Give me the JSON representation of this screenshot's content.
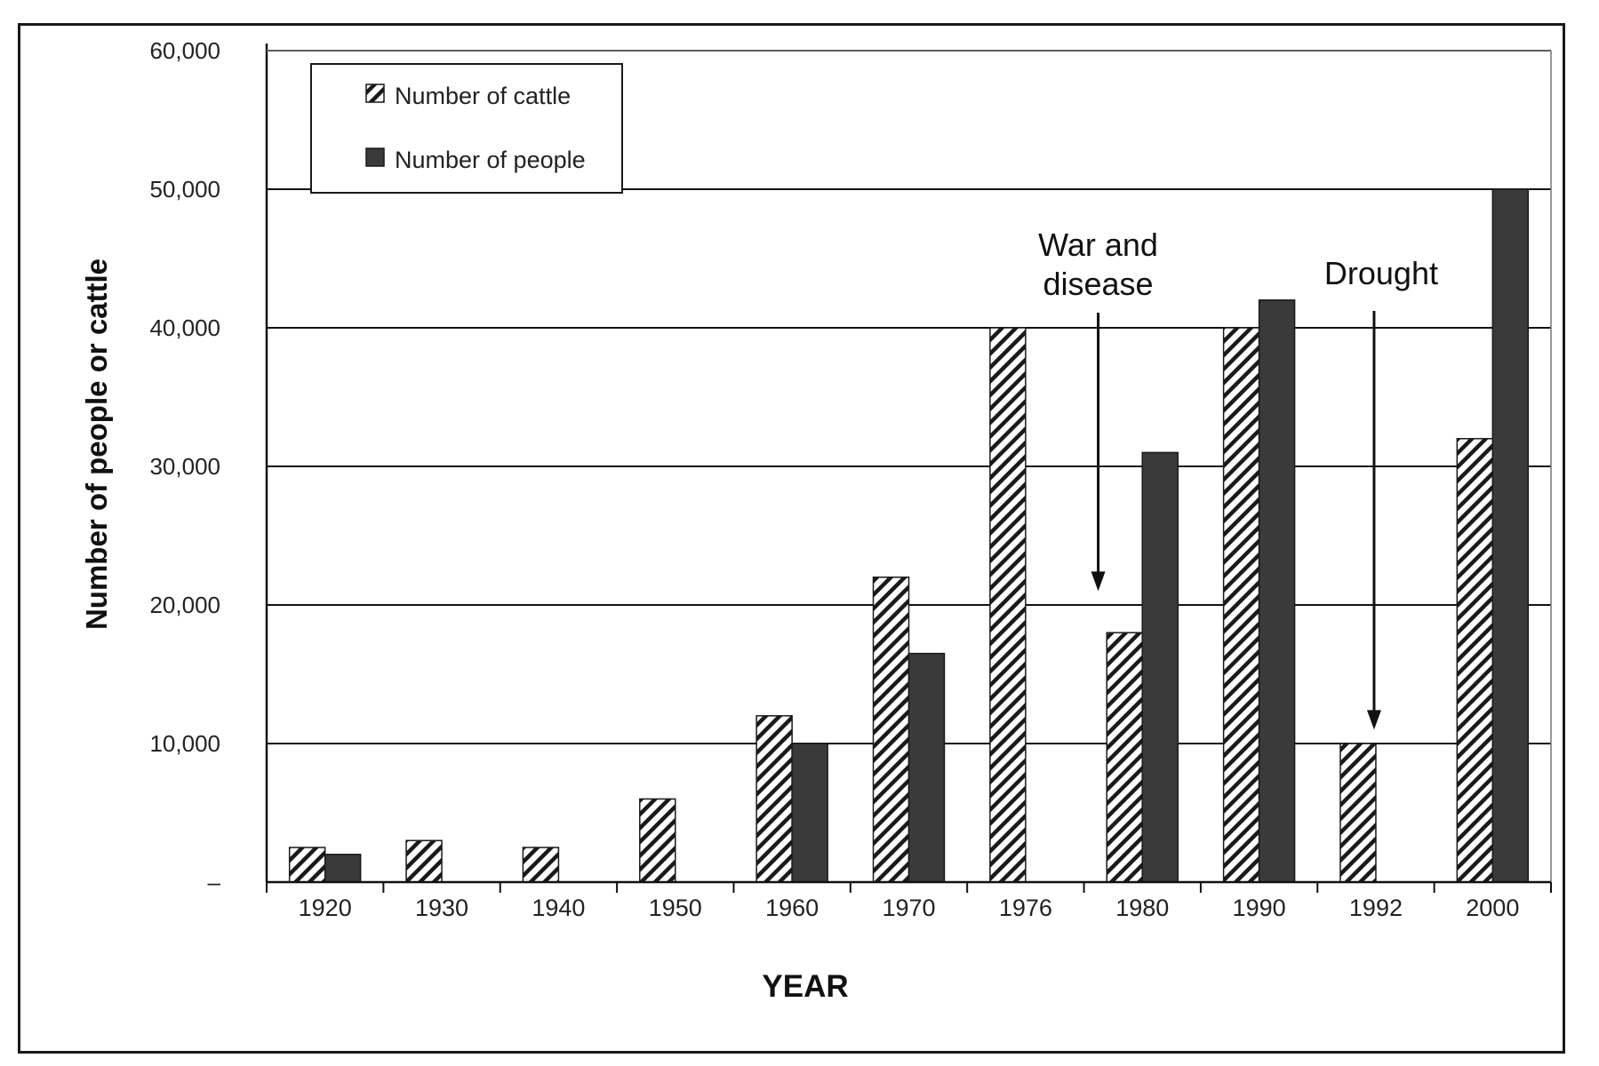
{
  "chart_data": {
    "type": "bar",
    "title": "",
    "xlabel": "YEAR",
    "ylabel": "Number of people or cattle",
    "categories": [
      "1920",
      "1930",
      "1940",
      "1950",
      "1960",
      "1970",
      "1976",
      "1980",
      "1990",
      "1992",
      "2000"
    ],
    "series": [
      {
        "name": "Number of cattle",
        "pattern": "hatched",
        "values": [
          2500,
          3000,
          2500,
          6000,
          12000,
          22000,
          40000,
          18000,
          40000,
          10000,
          32000
        ]
      },
      {
        "name": "Number of people",
        "pattern": "solid",
        "values": [
          2000,
          null,
          null,
          null,
          10000,
          16500,
          null,
          31000,
          42000,
          null,
          50000
        ]
      }
    ],
    "ylim": [
      0,
      60000
    ],
    "ytick_labels": [
      "–",
      "10,000",
      "20,000",
      "30,000",
      "40,000",
      "50,000",
      "60,000"
    ],
    "grid": true,
    "legend_position": "top-left",
    "annotations": [
      {
        "lines": [
          "War and",
          "disease"
        ],
        "arrow_to_category": "1976/1980 gap",
        "arrow_to_value": 21000
      },
      {
        "lines": [
          "Drought"
        ],
        "arrow_to_category": "1992",
        "arrow_to_value": 11000
      }
    ],
    "colors": {
      "people": "#3a3a3a",
      "cattle_hatch": "#1a1a1a",
      "grid": "#111111"
    }
  }
}
